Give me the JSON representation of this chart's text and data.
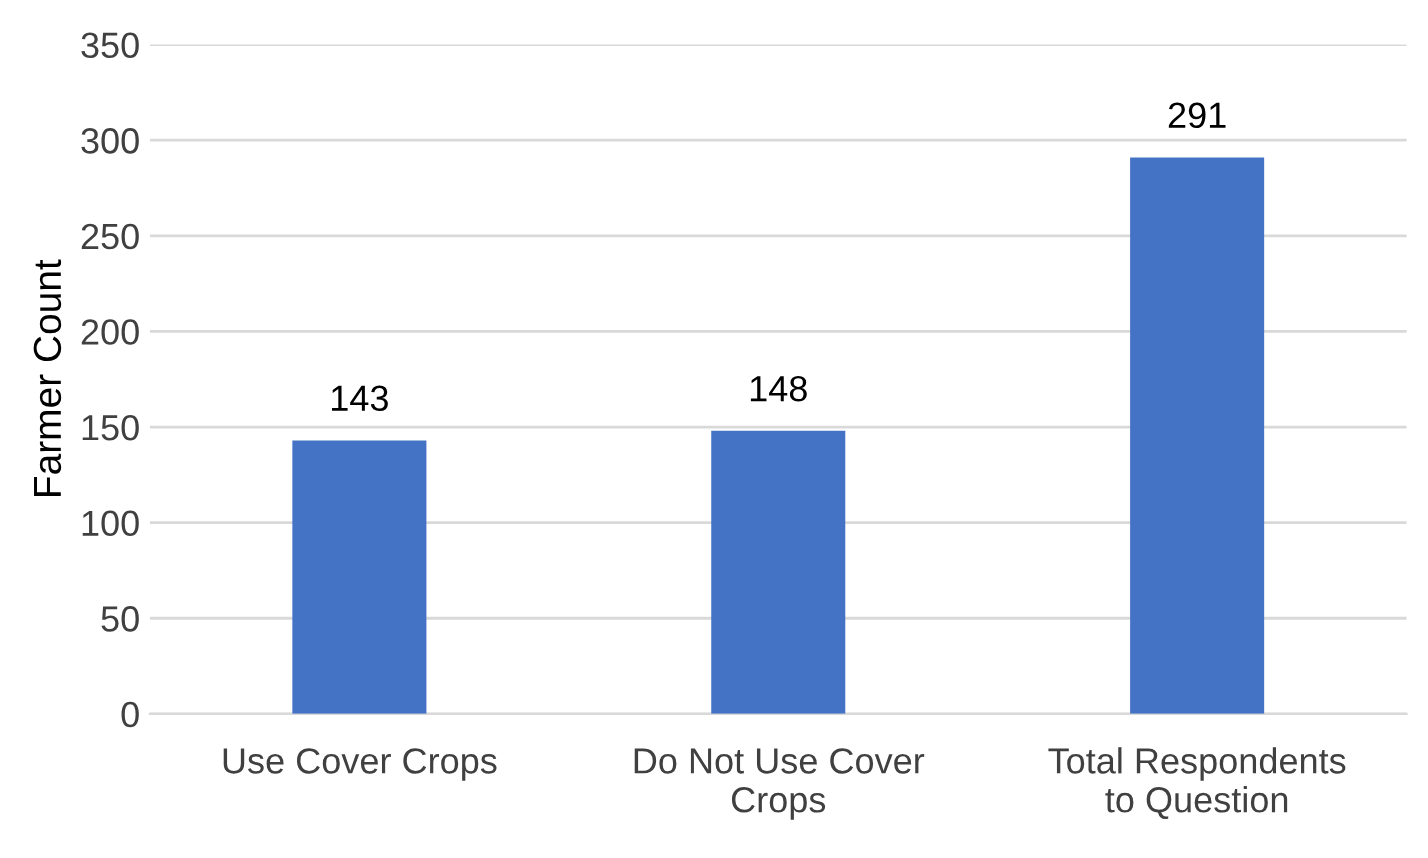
{
  "chart_data": {
    "type": "bar",
    "ylabel": "Farmer Count",
    "categories": [
      "Use Cover Crops",
      "Do Not Use Cover\nCrops",
      "Total Respondents\nto Question"
    ],
    "values": [
      143,
      148,
      291
    ],
    "color": "#4472c4",
    "ylim": [
      0,
      350
    ],
    "yticks": [
      0,
      50,
      100,
      150,
      200,
      250,
      300,
      350
    ],
    "grid": "y",
    "data_labels": true
  }
}
